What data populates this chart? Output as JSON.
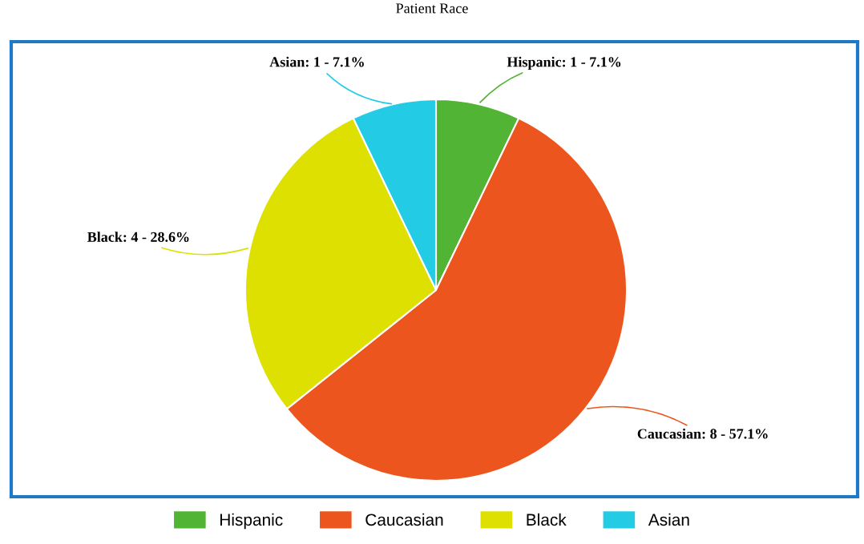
{
  "chart_data": {
    "type": "pie",
    "title": "Patient Race",
    "categories": [
      "Hispanic",
      "Caucasian",
      "Black",
      "Asian"
    ],
    "values": [
      1,
      8,
      4,
      1
    ],
    "colors": [
      "#52b435",
      "#ec561e",
      "#dde000",
      "#24cbe5"
    ],
    "value_labels": [
      "Hispanic: 1 - 7.1%",
      "Caucasian: 8 - 57.1%",
      "Black: 4 - 28.6%",
      "Asian: 1 - 7.1%"
    ],
    "legend": "bottom"
  }
}
